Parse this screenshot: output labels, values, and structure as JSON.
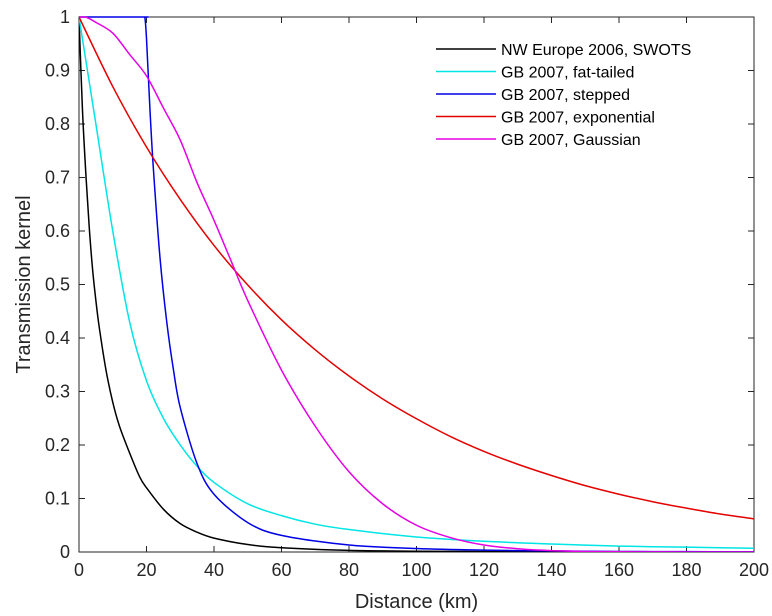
{
  "chart_data": {
    "type": "line",
    "title": "",
    "xlabel": "Distance (km)",
    "ylabel": "Transmission kernel",
    "xlim": [
      0,
      200
    ],
    "ylim": [
      0,
      1
    ],
    "xticks": [
      0,
      20,
      40,
      60,
      80,
      100,
      120,
      140,
      160,
      180,
      200
    ],
    "yticks": [
      0,
      0.1,
      0.2,
      0.3,
      0.4,
      0.5,
      0.6,
      0.7,
      0.8,
      0.9,
      1
    ],
    "ytick_labels": [
      "0",
      "0.1",
      "0.2",
      "0.3",
      "0.4",
      "0.5",
      "0.6",
      "0.7",
      "0.8",
      "0.9",
      "1"
    ],
    "grid": false,
    "legend_position": "top-right",
    "series": [
      {
        "name": "NW Europe 2006, SWOTS",
        "color": "#000000",
        "x": [
          0,
          1,
          2,
          3,
          4,
          5,
          6,
          8,
          10,
          12,
          15,
          18,
          20,
          25,
          30,
          35,
          40,
          50,
          60,
          80,
          100,
          120,
          140,
          160,
          180,
          200
        ],
        "y": [
          1.0,
          0.83,
          0.71,
          0.61,
          0.53,
          0.47,
          0.42,
          0.34,
          0.28,
          0.235,
          0.185,
          0.14,
          0.12,
          0.08,
          0.053,
          0.037,
          0.026,
          0.014,
          0.008,
          0.003,
          0.0015,
          0.001,
          0.0006,
          0.0004,
          0.0003,
          0.0002
        ]
      },
      {
        "name": "GB 2007, fat-tailed",
        "color": "#00e5e5",
        "x": [
          0,
          2,
          5,
          10,
          15,
          20,
          25,
          30,
          35,
          40,
          50,
          60,
          70,
          80,
          100,
          120,
          140,
          160,
          180,
          200
        ],
        "y": [
          1.0,
          0.92,
          0.8,
          0.6,
          0.43,
          0.32,
          0.25,
          0.2,
          0.16,
          0.13,
          0.09,
          0.068,
          0.052,
          0.042,
          0.028,
          0.02,
          0.015,
          0.011,
          0.009,
          0.007
        ]
      },
      {
        "name": "GB 2007, stepped",
        "color": "#0000e5",
        "x": [
          0,
          19,
          19.5,
          20,
          21,
          22,
          24,
          26,
          28,
          30,
          35,
          40,
          50,
          60,
          80,
          100,
          120,
          140,
          160,
          180,
          200
        ],
        "y": [
          1.0,
          1.0,
          1.0,
          0.96,
          0.83,
          0.72,
          0.55,
          0.43,
          0.34,
          0.27,
          0.165,
          0.108,
          0.055,
          0.031,
          0.013,
          0.0065,
          0.0035,
          0.002,
          0.001,
          0.0006,
          0.0003
        ]
      },
      {
        "name": "GB 2007, exponential",
        "color": "#e50000",
        "x": [
          0,
          10,
          20,
          30,
          40,
          50,
          60,
          70,
          80,
          90,
          100,
          110,
          120,
          130,
          140,
          150,
          160,
          170,
          180,
          190,
          200
        ],
        "y": [
          1.0,
          0.87,
          0.757,
          0.659,
          0.573,
          0.499,
          0.434,
          0.378,
          0.329,
          0.286,
          0.249,
          0.216,
          0.188,
          0.164,
          0.143,
          0.124,
          0.108,
          0.094,
          0.082,
          0.071,
          0.062
        ]
      },
      {
        "name": "GB 2007, Gaussian",
        "color": "#e500e5",
        "x": [
          0,
          2,
          5,
          10,
          15,
          20,
          25,
          30,
          35,
          40,
          45,
          50,
          60,
          70,
          80,
          90,
          100,
          110,
          120,
          130,
          140,
          150,
          160,
          180,
          200
        ],
        "y": [
          1.0,
          1.0,
          0.99,
          0.97,
          0.93,
          0.89,
          0.83,
          0.77,
          0.69,
          0.62,
          0.545,
          0.47,
          0.34,
          0.235,
          0.15,
          0.09,
          0.05,
          0.027,
          0.013,
          0.006,
          0.0025,
          0.001,
          0.0004,
          0.0001,
          0.0
        ]
      }
    ]
  }
}
